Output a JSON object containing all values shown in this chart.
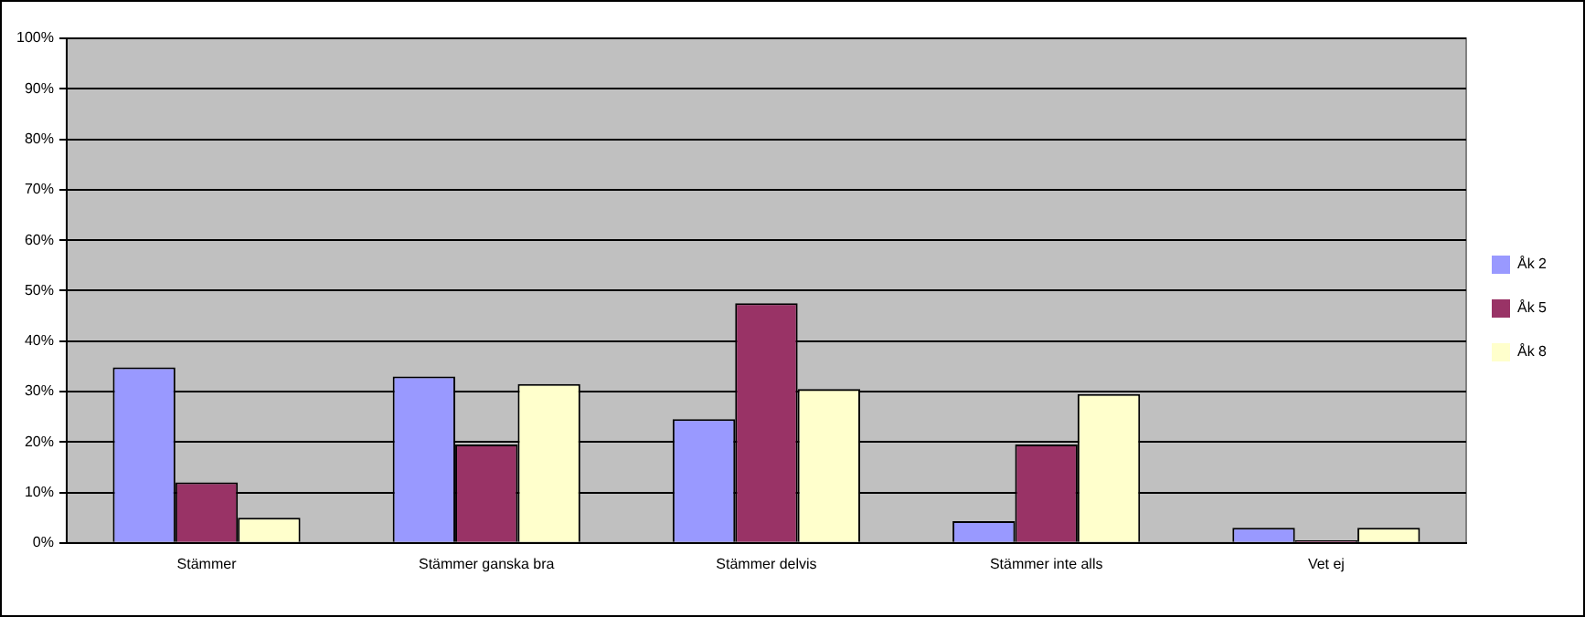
{
  "chart_data": {
    "type": "bar",
    "categories": [
      "Stämmer",
      "Stämmer ganska bra",
      "Stämmer delvis",
      "Stämmer inte alls",
      "Vet ej"
    ],
    "series": [
      {
        "name": "Åk 2",
        "color": "#9999ff",
        "values": [
          34.8,
          33,
          24.5,
          4.3,
          3
        ]
      },
      {
        "name": "Åk 5",
        "color": "#993366",
        "values": [
          12,
          19.5,
          47.5,
          19.5,
          0.5
        ]
      },
      {
        "name": "Åk 8",
        "color": "#ffffcc",
        "values": [
          5,
          31.5,
          30.5,
          29.5,
          3
        ]
      }
    ],
    "ylim": [
      0,
      100
    ],
    "yticks": [
      {
        "value": 0,
        "label": "0%"
      },
      {
        "value": 10,
        "label": "10%"
      },
      {
        "value": 20,
        "label": "20%"
      },
      {
        "value": 30,
        "label": "30%"
      },
      {
        "value": 40,
        "label": "40%"
      },
      {
        "value": 50,
        "label": "50%"
      },
      {
        "value": 60,
        "label": "60%"
      },
      {
        "value": 70,
        "label": "70%"
      },
      {
        "value": 80,
        "label": "80%"
      },
      {
        "value": 90,
        "label": "90%"
      },
      {
        "value": 100,
        "label": "100%"
      }
    ],
    "grid": "y",
    "legend": "right"
  }
}
